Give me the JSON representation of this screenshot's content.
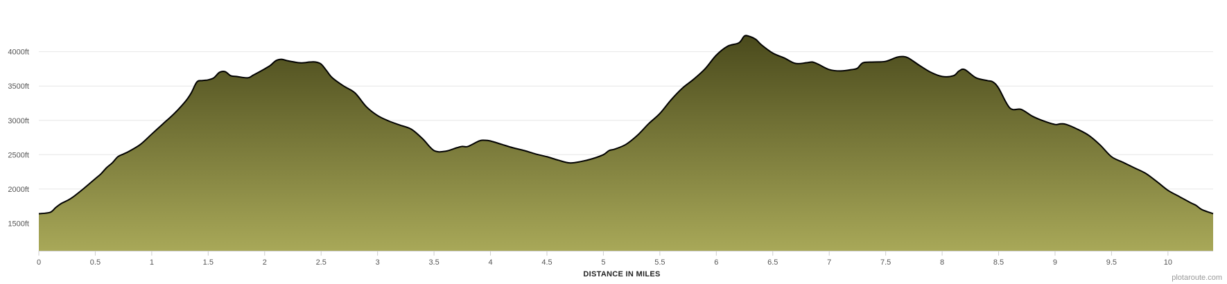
{
  "chart_data": {
    "type": "area",
    "title": "",
    "xlabel": "DISTANCE IN MILES",
    "ylabel": "",
    "xlim": [
      0,
      10.4
    ],
    "ylim": [
      1100,
      4350
    ],
    "x_ticks": [
      0,
      0.5,
      1,
      1.5,
      2,
      2.5,
      3,
      3.5,
      4,
      4.5,
      5,
      5.5,
      6,
      6.5,
      7,
      7.5,
      8,
      8.5,
      9,
      9.5,
      10
    ],
    "x_tick_labels": [
      "0",
      "0.5",
      "1",
      "1.5",
      "2",
      "2.5",
      "3",
      "3.5",
      "4",
      "4.5",
      "5",
      "5.5",
      "6",
      "6.5",
      "7",
      "7.5",
      "8",
      "8.5",
      "9",
      "9.5",
      "10"
    ],
    "y_ticks": [
      1500,
      2000,
      2500,
      3000,
      3500,
      4000
    ],
    "y_tick_labels": [
      "1500ft",
      "2000ft",
      "2500ft",
      "3000ft",
      "3500ft",
      "4000ft"
    ],
    "grid": true,
    "legend": "none",
    "colors": {
      "fill_top": "#4a4a1c",
      "fill_bottom": "#a8a858",
      "line": "#000000",
      "grid": "#e6e6e6"
    },
    "series": [
      {
        "x": [
          0,
          0.1,
          0.15,
          0.2,
          0.25,
          0.3,
          0.4,
          0.5,
          0.55,
          0.6,
          0.65,
          0.7,
          0.75,
          0.8,
          0.9,
          1.0,
          1.1,
          1.2,
          1.3,
          1.35,
          1.4,
          1.45,
          1.5,
          1.55,
          1.6,
          1.65,
          1.7,
          1.75,
          1.85,
          1.9,
          2.0,
          2.05,
          2.1,
          2.15,
          2.2,
          2.3,
          2.35,
          2.4,
          2.45,
          2.5,
          2.55,
          2.6,
          2.7,
          2.8,
          2.9,
          3.0,
          3.1,
          3.2,
          3.3,
          3.4,
          3.5,
          3.6,
          3.7,
          3.75,
          3.8,
          3.9,
          3.95,
          4.0,
          4.1,
          4.2,
          4.3,
          4.4,
          4.5,
          4.6,
          4.7,
          4.8,
          4.9,
          5.0,
          5.05,
          5.1,
          5.2,
          5.3,
          5.4,
          5.5,
          5.6,
          5.7,
          5.8,
          5.9,
          6.0,
          6.1,
          6.2,
          6.25,
          6.3,
          6.35,
          6.4,
          6.5,
          6.6,
          6.7,
          6.8,
          6.85,
          6.9,
          7.0,
          7.1,
          7.2,
          7.25,
          7.3,
          7.4,
          7.5,
          7.6,
          7.65,
          7.7,
          7.8,
          7.9,
          8.0,
          8.1,
          8.15,
          8.2,
          8.3,
          8.4,
          8.45,
          8.5,
          8.6,
          8.7,
          8.8,
          8.9,
          9.0,
          9.05,
          9.1,
          9.2,
          9.3,
          9.4,
          9.5,
          9.6,
          9.7,
          9.8,
          9.9,
          10.0,
          10.1,
          10.2,
          10.25,
          10.3,
          10.4
        ],
        "y": [
          1640,
          1660,
          1730,
          1790,
          1830,
          1880,
          2010,
          2150,
          2220,
          2310,
          2380,
          2470,
          2510,
          2550,
          2650,
          2800,
          2950,
          3100,
          3280,
          3400,
          3560,
          3580,
          3590,
          3620,
          3700,
          3710,
          3650,
          3640,
          3620,
          3660,
          3750,
          3800,
          3870,
          3890,
          3870,
          3840,
          3840,
          3850,
          3850,
          3820,
          3720,
          3620,
          3500,
          3400,
          3200,
          3070,
          2990,
          2930,
          2870,
          2730,
          2560,
          2550,
          2600,
          2620,
          2620,
          2700,
          2710,
          2700,
          2650,
          2600,
          2560,
          2510,
          2470,
          2420,
          2380,
          2400,
          2440,
          2500,
          2560,
          2580,
          2650,
          2780,
          2950,
          3100,
          3300,
          3470,
          3600,
          3750,
          3950,
          4080,
          4130,
          4230,
          4220,
          4180,
          4100,
          3980,
          3910,
          3830,
          3840,
          3850,
          3820,
          3740,
          3720,
          3740,
          3760,
          3840,
          3850,
          3860,
          3920,
          3930,
          3910,
          3800,
          3700,
          3640,
          3650,
          3720,
          3740,
          3620,
          3580,
          3560,
          3470,
          3180,
          3160,
          3060,
          2990,
          2940,
          2950,
          2940,
          2870,
          2780,
          2640,
          2470,
          2390,
          2310,
          2230,
          2110,
          1980,
          1890,
          1800,
          1760,
          1700,
          1640
        ]
      }
    ],
    "credit": "plotaroute.com"
  }
}
